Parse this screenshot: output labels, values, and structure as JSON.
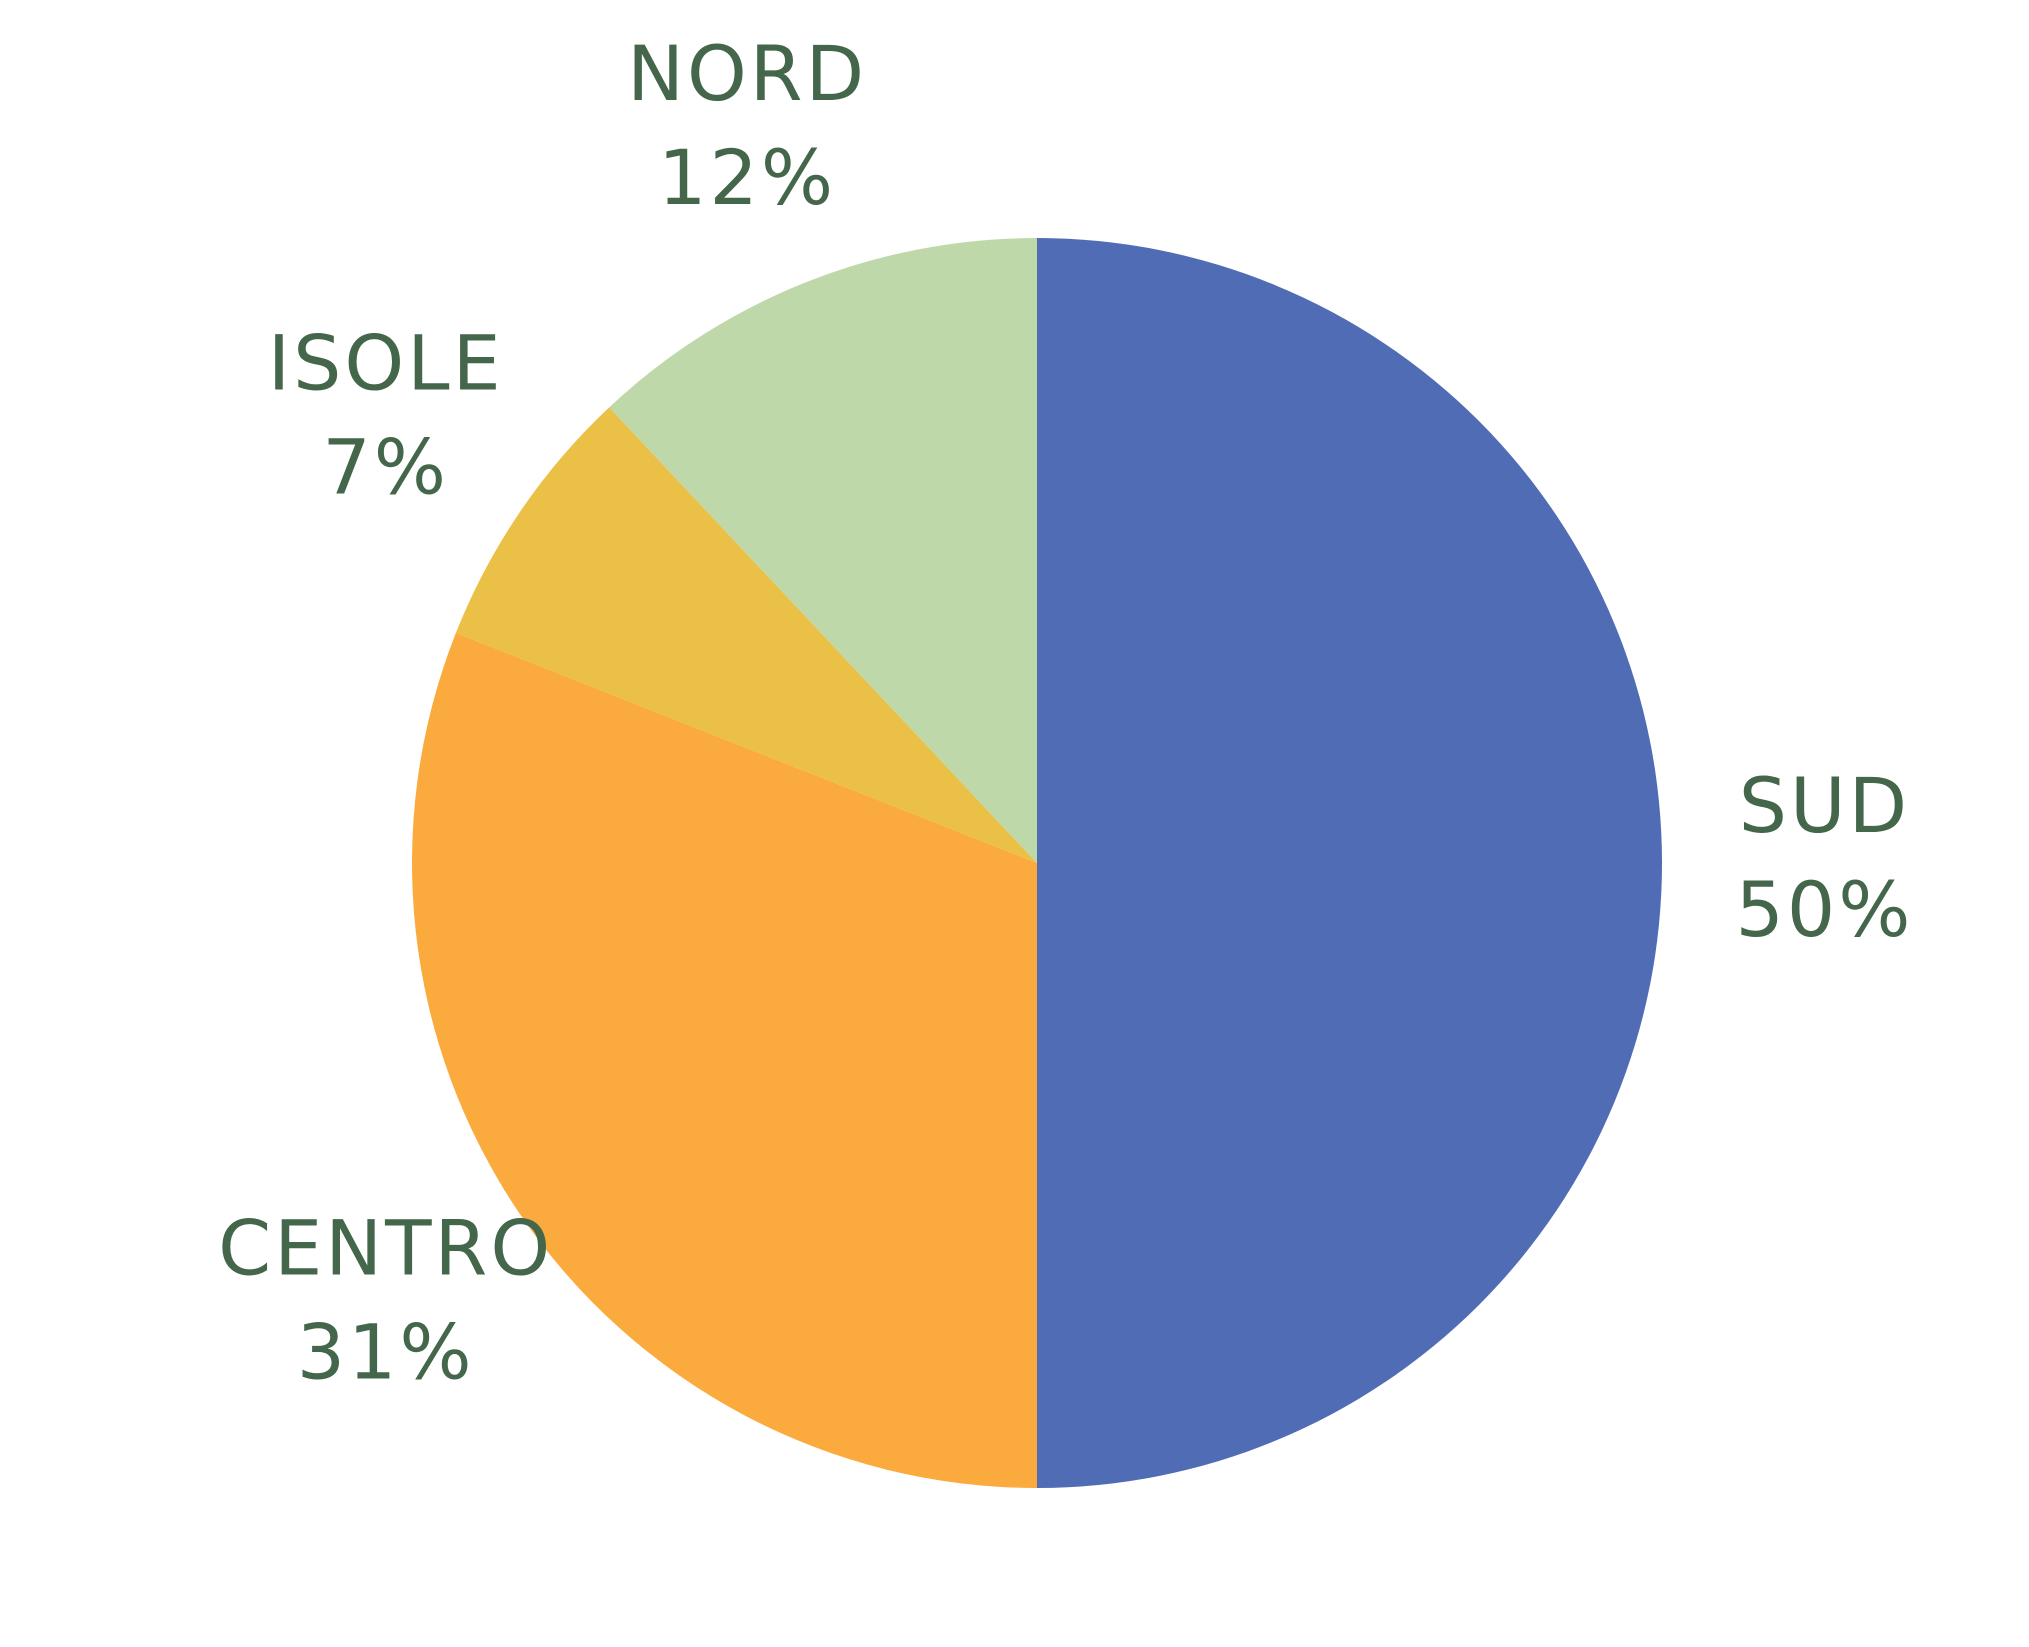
{
  "chart_data": {
    "type": "pie",
    "categories": [
      "SUD",
      "CENTRO",
      "ISOLE",
      "NORD"
    ],
    "values": [
      50,
      31,
      7,
      12
    ],
    "value_labels": [
      "50%",
      "31%",
      "7%",
      "12%"
    ],
    "colors": [
      "#506cb4",
      "#fbaa3e",
      "#eac046",
      "#bed8aa"
    ]
  }
}
